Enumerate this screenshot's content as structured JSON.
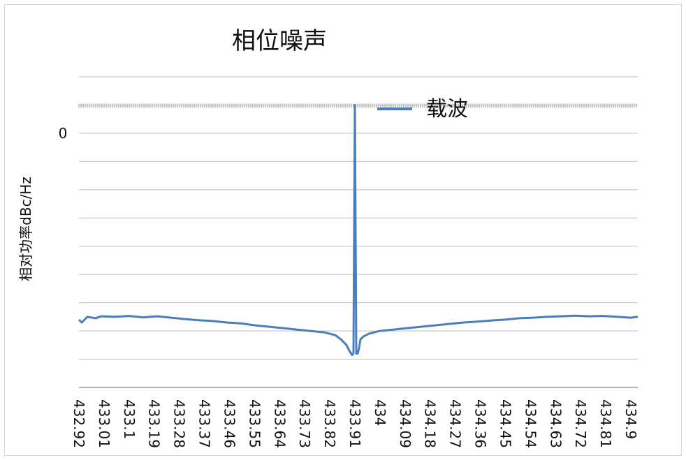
{
  "chart_data": {
    "type": "line",
    "title": "相位噪声",
    "xlabel": "",
    "ylabel": "相对功率dBc/Hz",
    "legend": {
      "position": "top-right",
      "entries": [
        "载波"
      ]
    },
    "grid": true,
    "x_tick_labels": [
      "432.92",
      "433.01",
      "433.1",
      "433.19",
      "433.28",
      "433.37",
      "433.46",
      "433.55",
      "433.64",
      "433.73",
      "433.82",
      "433.91",
      "434",
      "434.09",
      "434.18",
      "434.27",
      "434.36",
      "434.45",
      "434.54",
      "434.63",
      "434.72",
      "434.81",
      "434.9"
    ],
    "y_tick_labels": [
      {
        "value": 0,
        "label": "0"
      }
    ],
    "ylim": [
      -90,
      20
    ],
    "xlim": [
      432.92,
      434.925
    ],
    "series": [
      {
        "name": "载波",
        "color": "#4a7ebb",
        "x": [
          432.92,
          432.93,
          432.95,
          432.98,
          433.0,
          433.05,
          433.1,
          433.15,
          433.2,
          433.25,
          433.3,
          433.35,
          433.4,
          433.45,
          433.5,
          433.55,
          433.6,
          433.65,
          433.7,
          433.75,
          433.8,
          433.84,
          433.86,
          433.88,
          433.89,
          433.9,
          433.905,
          433.91,
          433.915,
          433.92,
          433.925,
          433.93,
          433.94,
          433.96,
          433.98,
          434.0,
          434.05,
          434.1,
          434.15,
          434.2,
          434.25,
          434.3,
          434.35,
          434.4,
          434.45,
          434.5,
          434.55,
          434.6,
          434.65,
          434.7,
          434.75,
          434.8,
          434.85,
          434.9,
          434.925
        ],
        "y": [
          -66,
          -67,
          -65,
          -65.5,
          -64.8,
          -65,
          -64.7,
          -65.2,
          -64.8,
          -65.3,
          -65.8,
          -66.2,
          -66.5,
          -67,
          -67.3,
          -68,
          -68.5,
          -69,
          -69.5,
          -70,
          -70.5,
          -71.5,
          -73,
          -75,
          -77,
          -78.5,
          -78,
          10,
          -78,
          -78,
          -76,
          -73,
          -72,
          -71,
          -70.5,
          -70,
          -69.5,
          -69,
          -68.5,
          -68,
          -67.5,
          -67,
          -66.7,
          -66.3,
          -66,
          -65.5,
          -65.3,
          -65,
          -64.8,
          -64.6,
          -64.8,
          -64.7,
          -65,
          -65.3,
          -65
        ]
      }
    ]
  }
}
